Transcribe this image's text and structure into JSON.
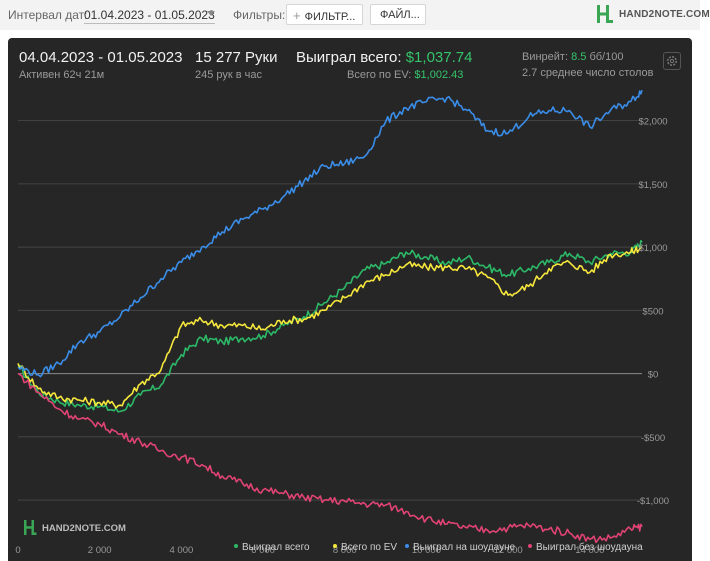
{
  "toolbar": {
    "date_interval_label": "Интервал дат:",
    "date_interval_value": "01.04.2023 - 01.05.2023",
    "filters_label": "Фильтры:",
    "filter_button_label": "ФИЛЬТР...",
    "files_button_label": "ФАЙЛ...",
    "brand": "HAND2NOTE.COM"
  },
  "summary": {
    "date_range": "04.04.2023 - 01.05.2023",
    "active": "Активен 62ч 21м",
    "hands": "15 277 Руки",
    "hands_per_hour": "245 рук в час",
    "won_total_label": "Выиграл всего:",
    "won_total_value": "$1,037.74",
    "ev_total_label": "Всего по EV:",
    "ev_total_value": "$1,002.43",
    "winrate_label": "Винрейт:",
    "winrate_value": "8.5",
    "winrate_unit": "бб/100",
    "tables": "2.7 среднее число столов"
  },
  "chart_data": {
    "type": "line",
    "title": "",
    "xlabel": "",
    "ylabel": "",
    "xlim": [
      0,
      15277
    ],
    "ylim": [
      -1300,
      2400
    ],
    "x_ticks": [
      0,
      2000,
      4000,
      6000,
      8000,
      10000,
      12000,
      14000
    ],
    "x_tick_labels": [
      "0",
      "2 000",
      "4 000",
      "6 000",
      "8 000",
      "10 000",
      "12 000",
      "14 000"
    ],
    "y_ticks": [
      -1000,
      -500,
      0,
      500,
      1000,
      1500,
      2000
    ],
    "y_tick_labels": [
      "-$1,000",
      "-$500",
      "$0",
      "$500",
      "$1,000",
      "$1,500",
      "$2,000"
    ],
    "grid": true,
    "legend_position": "bottom-right",
    "watermark": "HAND2NOTE.COM",
    "x": [
      0,
      500,
      1000,
      1500,
      2000,
      2500,
      3000,
      3500,
      4000,
      4500,
      5000,
      5500,
      6000,
      6500,
      7000,
      7500,
      8000,
      8500,
      9000,
      9500,
      10000,
      10500,
      11000,
      11500,
      12000,
      12500,
      13000,
      13500,
      14000,
      14500,
      15000,
      15277
    ],
    "series": [
      {
        "name": "Выиграл всего",
        "color": "#2db868",
        "values": [
          60,
          -150,
          -220,
          -250,
          -260,
          -300,
          -170,
          -90,
          150,
          280,
          250,
          280,
          300,
          380,
          450,
          560,
          680,
          820,
          870,
          960,
          920,
          870,
          920,
          840,
          780,
          830,
          880,
          950,
          880,
          950,
          960,
          1037.74
        ]
      },
      {
        "name": "Всего по EV",
        "color": "#f5e73c",
        "values": [
          80,
          -120,
          -190,
          -210,
          -230,
          -250,
          -80,
          30,
          380,
          420,
          380,
          380,
          350,
          420,
          430,
          500,
          600,
          720,
          780,
          860,
          840,
          840,
          830,
          760,
          620,
          690,
          830,
          880,
          800,
          940,
          960,
          1002.43
        ]
      },
      {
        "name": "Выиграл на шоудауне",
        "color": "#3a8de8",
        "values": [
          50,
          -10,
          80,
          250,
          330,
          450,
          600,
          750,
          880,
          1000,
          1120,
          1220,
          1300,
          1400,
          1520,
          1640,
          1660,
          1720,
          1990,
          2100,
          2150,
          2180,
          2080,
          1920,
          1900,
          2030,
          2080,
          2080,
          1950,
          2080,
          2150,
          2240
        ]
      },
      {
        "name": "Выиграл без шоудауна",
        "color": "#e04374",
        "values": [
          0,
          -150,
          -280,
          -360,
          -400,
          -480,
          -540,
          -610,
          -660,
          -720,
          -810,
          -870,
          -920,
          -950,
          -980,
          -1000,
          -1010,
          -1030,
          -1040,
          -1090,
          -1150,
          -1190,
          -1220,
          -1240,
          -1220,
          -1200,
          -1230,
          -1260,
          -1310,
          -1300,
          -1230,
          -1210
        ]
      }
    ]
  }
}
